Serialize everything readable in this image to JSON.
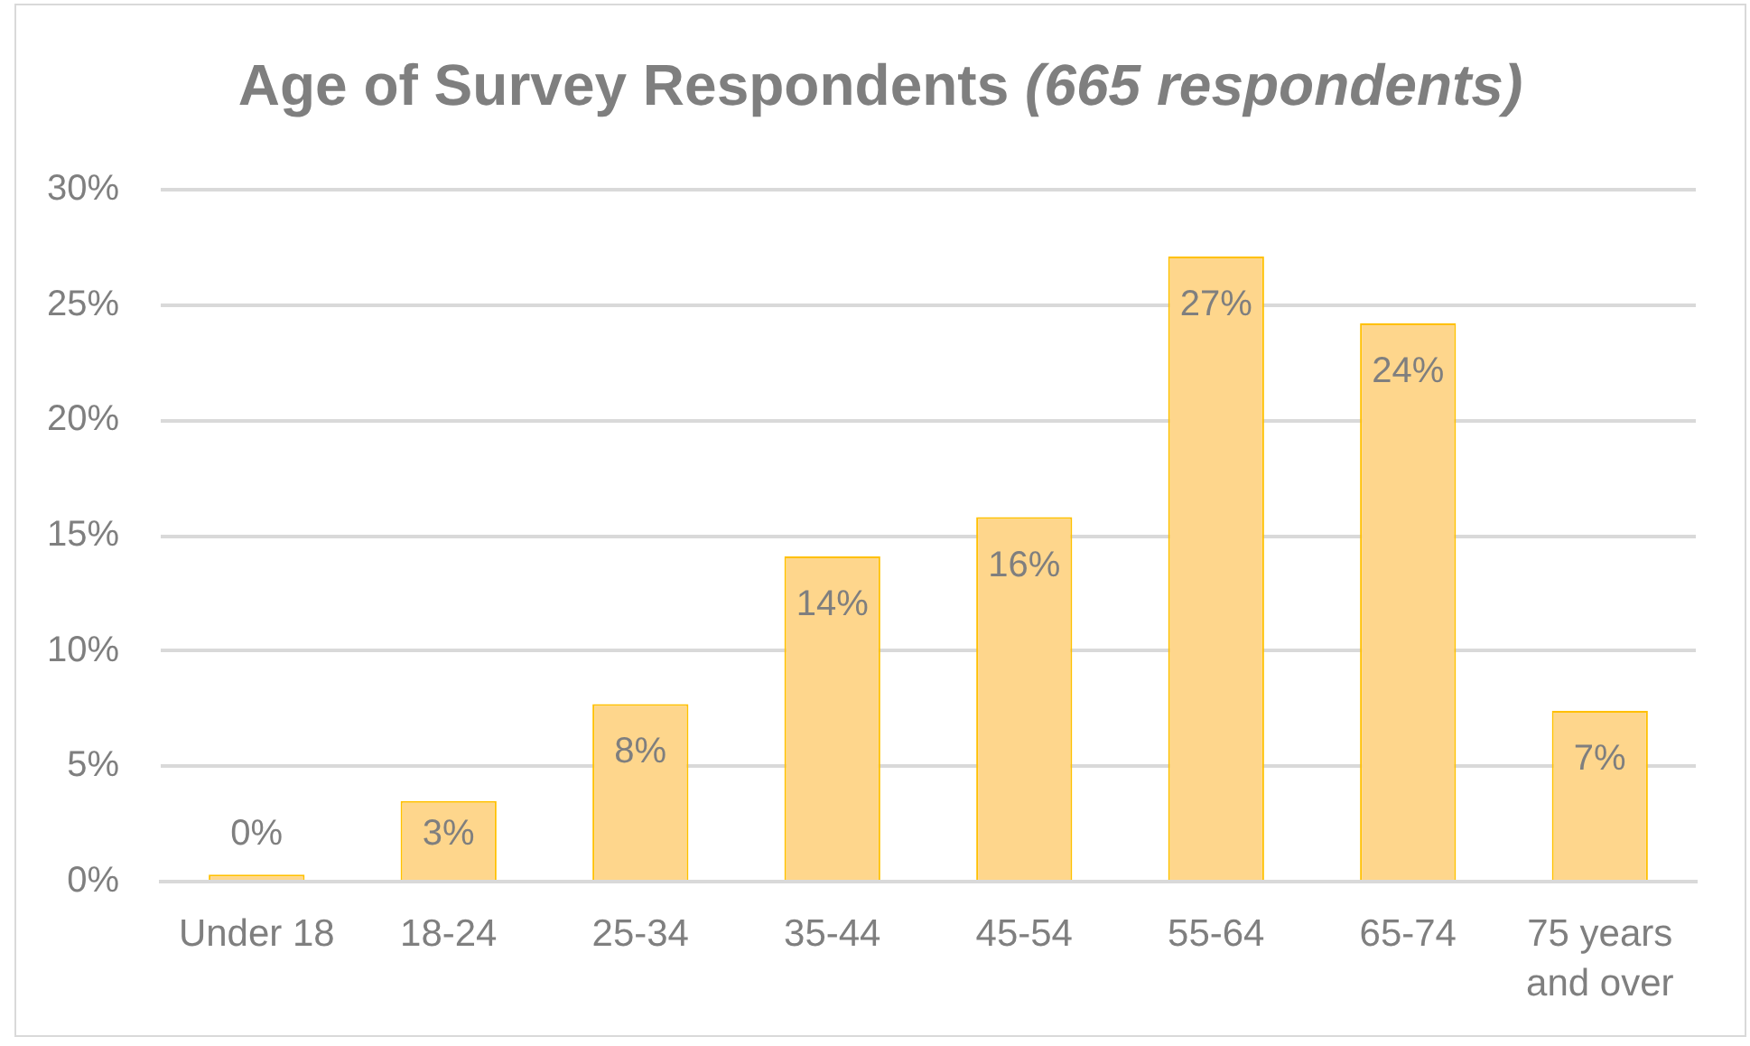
{
  "chart_data": {
    "type": "bar",
    "title": "Age of Survey Respondents (665 respondents)",
    "categories": [
      "Under 18",
      "18-24",
      "25-34",
      "35-44",
      "45-54",
      "55-64",
      "65-74",
      "75 years and over"
    ],
    "values": [
      0.3,
      3.5,
      7.7,
      14.1,
      15.8,
      27.1,
      24.2,
      7.4
    ],
    "value_labels": [
      "0%",
      "3%",
      "8%",
      "14%",
      "16%",
      "27%",
      "24%",
      "7%"
    ],
    "color": "#fed68c",
    "ylim": [
      0,
      30
    ],
    "yticks": [
      {
        "value": 0,
        "label": "0%"
      },
      {
        "value": 5,
        "label": "5%"
      },
      {
        "value": 10,
        "label": "10%"
      },
      {
        "value": 15,
        "label": "15%"
      },
      {
        "value": 20,
        "label": "20%"
      },
      {
        "value": 25,
        "label": "25%"
      },
      {
        "value": 30,
        "label": "30%"
      }
    ],
    "grid": "y"
  }
}
